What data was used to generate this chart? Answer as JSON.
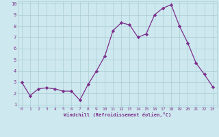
{
  "x": [
    0,
    1,
    2,
    3,
    4,
    5,
    6,
    7,
    8,
    9,
    10,
    11,
    12,
    13,
    14,
    15,
    16,
    17,
    18,
    19,
    20,
    21,
    22,
    23
  ],
  "y": [
    3.0,
    1.8,
    2.4,
    2.5,
    2.4,
    2.2,
    2.2,
    1.4,
    2.8,
    4.0,
    5.3,
    7.6,
    8.3,
    8.1,
    7.0,
    7.3,
    9.0,
    9.6,
    9.9,
    8.0,
    6.5,
    4.7,
    3.7,
    2.6
  ],
  "xlabel": "Windchill (Refroidissement éolien,°C)",
  "xlim_min": -0.5,
  "xlim_max": 23.5,
  "ylim_min": 0.8,
  "ylim_max": 10.2,
  "yticks": [
    1,
    2,
    3,
    4,
    5,
    6,
    7,
    8,
    9,
    10
  ],
  "xticks": [
    0,
    1,
    2,
    3,
    4,
    5,
    6,
    7,
    8,
    9,
    10,
    11,
    12,
    13,
    14,
    15,
    16,
    17,
    18,
    19,
    20,
    21,
    22,
    23
  ],
  "line_color": "#7b2d8b",
  "marker_color": "#7b2d8b",
  "bg_color": "#cde8ee",
  "grid_color": "#aacdd6",
  "tick_label_color": "#7b2d8b",
  "axis_label_color": "#7b2d8b"
}
